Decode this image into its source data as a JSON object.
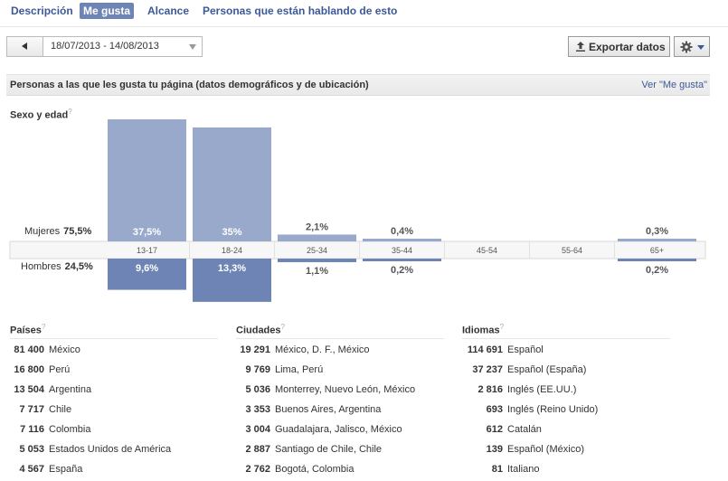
{
  "tabs": [
    {
      "label": "Descripción",
      "active": false
    },
    {
      "label": "Me gusta",
      "active": true
    },
    {
      "label": "Alcance",
      "active": false
    },
    {
      "label": "Personas que están hablando de esto",
      "active": false
    }
  ],
  "toolbar": {
    "date_range": "18/07/2013 - 14/08/2013",
    "export_label": "Exportar datos"
  },
  "section": {
    "title": "Personas a las que les gusta tu página (datos demográficos y de ubicación)",
    "link": "Ver \"Me gusta\""
  },
  "gender_age": {
    "title": "Sexo y edad",
    "qmark": "?",
    "women_label": "Mujeres",
    "women_total": "75,5%",
    "men_label": "Hombres",
    "men_total": "24,5%"
  },
  "chart_data": {
    "type": "bar",
    "categories": [
      "13-17",
      "18-24",
      "25-34",
      "35-44",
      "45-54",
      "55-64",
      "65+"
    ],
    "series": [
      {
        "name": "Mujeres",
        "values": [
          37.5,
          35,
          2.1,
          0.4,
          null,
          null,
          0.3
        ],
        "labels": [
          "37,5%",
          "35%",
          "2,1%",
          "0,4%",
          "",
          "",
          "0,3%"
        ]
      },
      {
        "name": "Hombres",
        "values": [
          9.6,
          13.3,
          1.1,
          0.2,
          null,
          null,
          0.2
        ],
        "labels": [
          "9,6%",
          "13,3%",
          "1,1%",
          "0,2%",
          "",
          "",
          "0,2%"
        ]
      }
    ],
    "colors": {
      "women": "#98a9cb",
      "men": "#6d84b4",
      "axis_bg": "#f7f7f7"
    }
  },
  "countries": {
    "title": "Países",
    "qmark": "?",
    "rows": [
      {
        "num": "81 400",
        "name": "México"
      },
      {
        "num": "16 800",
        "name": "Perú"
      },
      {
        "num": "13 504",
        "name": "Argentina"
      },
      {
        "num": "7 717",
        "name": "Chile"
      },
      {
        "num": "7 116",
        "name": "Colombia"
      },
      {
        "num": "5 053",
        "name": "Estados Unidos de América"
      },
      {
        "num": "4 567",
        "name": "España"
      }
    ]
  },
  "cities": {
    "title": "Ciudades",
    "qmark": "?",
    "rows": [
      {
        "num": "19 291",
        "name": "México, D. F., México"
      },
      {
        "num": "9 769",
        "name": "Lima, Perú"
      },
      {
        "num": "5 036",
        "name": "Monterrey, Nuevo León, México"
      },
      {
        "num": "3 353",
        "name": "Buenos Aires, Argentina"
      },
      {
        "num": "3 004",
        "name": "Guadalajara, Jalisco, México"
      },
      {
        "num": "2 887",
        "name": "Santiago de Chile, Chile"
      },
      {
        "num": "2 762",
        "name": "Bogotá, Colombia"
      }
    ]
  },
  "languages": {
    "title": "Idiomas",
    "qmark": "?",
    "rows": [
      {
        "num": "114 691",
        "name": "Español"
      },
      {
        "num": "37 237",
        "name": "Español (España)"
      },
      {
        "num": "2 816",
        "name": "Inglés (EE.UU.)"
      },
      {
        "num": "693",
        "name": "Inglés (Reino Unido)"
      },
      {
        "num": "612",
        "name": "Catalán"
      },
      {
        "num": "139",
        "name": "Español (México)"
      },
      {
        "num": "81",
        "name": "Italiano"
      }
    ]
  }
}
